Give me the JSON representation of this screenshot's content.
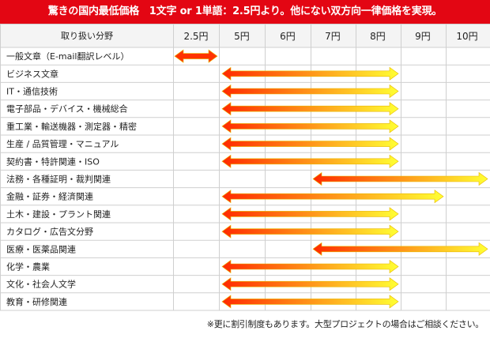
{
  "title": "驚きの国内最低価格　1文字 or 1単語：2.5円より。他にない双方向一律価格を実現。",
  "footnote": "※更に割引制度もあります。大型プロジェクトの場合はご相談ください。",
  "chart_data": {
    "type": "range-bar",
    "category_header": "取り扱い分野",
    "x_ticks": [
      {
        "value": 2.5,
        "label": "2.5円"
      },
      {
        "value": 5,
        "label": "5円"
      },
      {
        "value": 6,
        "label": "6円"
      },
      {
        "value": 7,
        "label": "7円"
      },
      {
        "value": 8,
        "label": "8円"
      },
      {
        "value": 9,
        "label": "9円"
      },
      {
        "value": 10,
        "label": "10円"
      }
    ],
    "categories": [
      "一般文章（E-mail翻訳レベル）",
      "ビジネス文章",
      "IT・通信技術",
      "電子部品・デバイス・機械総合",
      "重工業・輸送機器・測定器・精密",
      "生産 / 品質管理・マニュアル",
      "契約書・特許関連・ISO",
      "法務・各種証明・裁判関連",
      "金融・証券・経済関連",
      "土木・建設・プラント関連",
      "カタログ・広告文分野",
      "医療・医薬品関連",
      "化学・農業",
      "文化・社会人文学",
      "教育・研修関連"
    ],
    "ranges": [
      [
        2.5,
        2.5
      ],
      [
        5,
        8
      ],
      [
        5,
        8
      ],
      [
        5,
        8
      ],
      [
        5,
        8
      ],
      [
        5,
        8
      ],
      [
        5,
        8
      ],
      [
        7,
        10
      ],
      [
        5,
        9
      ],
      [
        5,
        8
      ],
      [
        5,
        8
      ],
      [
        7,
        10
      ],
      [
        5,
        8
      ],
      [
        5,
        8
      ],
      [
        5,
        8
      ]
    ],
    "colors": {
      "start": "#ff2a00",
      "end": "#ffff33",
      "outline": "#e8b800",
      "short_range": "#ff3300"
    }
  }
}
